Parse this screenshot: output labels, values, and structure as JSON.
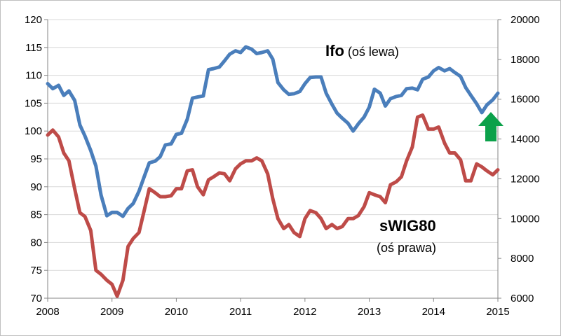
{
  "chart_data": {
    "type": "line",
    "title": "",
    "xlabel": "",
    "ylabel": "",
    "x_ticks": [
      "2008",
      "2009",
      "2010",
      "2011",
      "2012",
      "2013",
      "2014",
      "2015"
    ],
    "xlim": [
      2008.0,
      2015.0
    ],
    "y_left_ticks": [
      "70",
      "75",
      "80",
      "85",
      "90",
      "95",
      "100",
      "105",
      "110",
      "115",
      "120"
    ],
    "y_left_lim": [
      70,
      120
    ],
    "y_right_ticks": [
      "6000",
      "8000",
      "10000",
      "12000",
      "14000",
      "16000",
      "18000",
      "20000"
    ],
    "y_right_lim": [
      6000,
      20000
    ],
    "grid": true,
    "series": [
      {
        "name": "Ifo",
        "axis": "left",
        "color": "#4a7ebb",
        "x": [
          2008.0,
          2008.08,
          2008.17,
          2008.25,
          2008.33,
          2008.42,
          2008.5,
          2008.58,
          2008.67,
          2008.75,
          2008.83,
          2008.92,
          2009.0,
          2009.08,
          2009.17,
          2009.25,
          2009.33,
          2009.42,
          2009.5,
          2009.58,
          2009.67,
          2009.75,
          2009.83,
          2009.92,
          2010.0,
          2010.08,
          2010.17,
          2010.25,
          2010.33,
          2010.42,
          2010.5,
          2010.58,
          2010.67,
          2010.75,
          2010.83,
          2010.92,
          2011.0,
          2011.08,
          2011.17,
          2011.25,
          2011.33,
          2011.42,
          2011.5,
          2011.58,
          2011.67,
          2011.75,
          2011.83,
          2011.92,
          2012.0,
          2012.08,
          2012.17,
          2012.25,
          2012.33,
          2012.42,
          2012.5,
          2012.58,
          2012.67,
          2012.75,
          2012.83,
          2012.92,
          2013.0,
          2013.08,
          2013.17,
          2013.25,
          2013.33,
          2013.42,
          2013.5,
          2013.58,
          2013.67,
          2013.75,
          2013.83,
          2013.92,
          2014.0,
          2014.08,
          2014.17,
          2014.25,
          2014.33,
          2014.42,
          2014.5,
          2014.58,
          2014.67,
          2014.75,
          2014.83,
          2014.92,
          2015.0
        ],
        "values": [
          108.5,
          107.6,
          108.2,
          106.4,
          107.2,
          105.5,
          101.1,
          99.1,
          96.5,
          93.7,
          88.5,
          84.8,
          85.4,
          85.4,
          84.7,
          86.1,
          87.0,
          89.2,
          91.8,
          94.3,
          94.6,
          95.4,
          97.5,
          97.7,
          99.4,
          99.6,
          102.1,
          105.9,
          106.1,
          106.3,
          111.0,
          111.2,
          111.5,
          112.6,
          113.8,
          114.4,
          114.1,
          115.1,
          114.7,
          113.9,
          114.1,
          114.4,
          112.9,
          108.7,
          107.4,
          106.6,
          106.7,
          107.1,
          108.5,
          109.6,
          109.7,
          109.7,
          106.8,
          104.8,
          103.2,
          102.3,
          101.4,
          100.0,
          101.3,
          102.5,
          104.3,
          107.5,
          106.8,
          104.5,
          105.8,
          106.2,
          106.4,
          107.6,
          107.7,
          107.4,
          109.3,
          109.7,
          110.8,
          111.4,
          110.8,
          111.2,
          110.5,
          109.8,
          107.8,
          106.4,
          104.9,
          103.3,
          104.7,
          105.6,
          106.8
        ]
      },
      {
        "name": "sWIG80",
        "axis": "right",
        "color": "#be4b48",
        "x": [
          2008.0,
          2008.08,
          2008.17,
          2008.25,
          2008.33,
          2008.42,
          2008.5,
          2008.58,
          2008.67,
          2008.75,
          2008.83,
          2008.92,
          2009.0,
          2009.08,
          2009.17,
          2009.25,
          2009.33,
          2009.42,
          2009.5,
          2009.58,
          2009.67,
          2009.75,
          2009.83,
          2009.92,
          2010.0,
          2010.08,
          2010.17,
          2010.25,
          2010.33,
          2010.42,
          2010.5,
          2010.58,
          2010.67,
          2010.75,
          2010.83,
          2010.92,
          2011.0,
          2011.08,
          2011.17,
          2011.25,
          2011.33,
          2011.42,
          2011.5,
          2011.58,
          2011.67,
          2011.75,
          2011.83,
          2011.92,
          2012.0,
          2012.08,
          2012.17,
          2012.25,
          2012.33,
          2012.42,
          2012.5,
          2012.58,
          2012.67,
          2012.75,
          2012.83,
          2012.92,
          2013.0,
          2013.08,
          2013.17,
          2013.25,
          2013.33,
          2013.42,
          2013.5,
          2013.58,
          2013.67,
          2013.75,
          2013.83,
          2013.92,
          2014.0,
          2014.08,
          2014.17,
          2014.25,
          2014.33,
          2014.42,
          2014.5,
          2014.58,
          2014.67,
          2014.75,
          2014.83,
          2014.92,
          2015.0
        ],
        "values": [
          14200,
          14450,
          14100,
          13300,
          12900,
          11500,
          10300,
          10100,
          9400,
          7400,
          7200,
          6900,
          6700,
          6100,
          6900,
          8600,
          9000,
          9300,
          10400,
          11500,
          11300,
          11100,
          11100,
          11150,
          11500,
          11500,
          12400,
          12450,
          11600,
          11200,
          11950,
          12100,
          12300,
          12250,
          11900,
          12500,
          12750,
          12900,
          12900,
          13050,
          12900,
          12250,
          11000,
          10000,
          9500,
          9700,
          9300,
          9100,
          10000,
          10400,
          10300,
          10000,
          9500,
          9700,
          9500,
          9600,
          10000,
          10000,
          10150,
          10600,
          11300,
          11200,
          11100,
          10800,
          11700,
          11850,
          12100,
          12900,
          13600,
          15100,
          15200,
          14500,
          14500,
          14600,
          13800,
          13300,
          13300,
          12950,
          11900,
          11900,
          12750,
          12600,
          12400,
          12200,
          12450
        ]
      }
    ],
    "annotations": {
      "ifo_bold": "Ifo",
      "ifo_rest": " (oś lewa)",
      "swig_bold": "sWIG80",
      "swig_rest": "(oś prawa)"
    },
    "arrow_color": "#0ba14a"
  }
}
